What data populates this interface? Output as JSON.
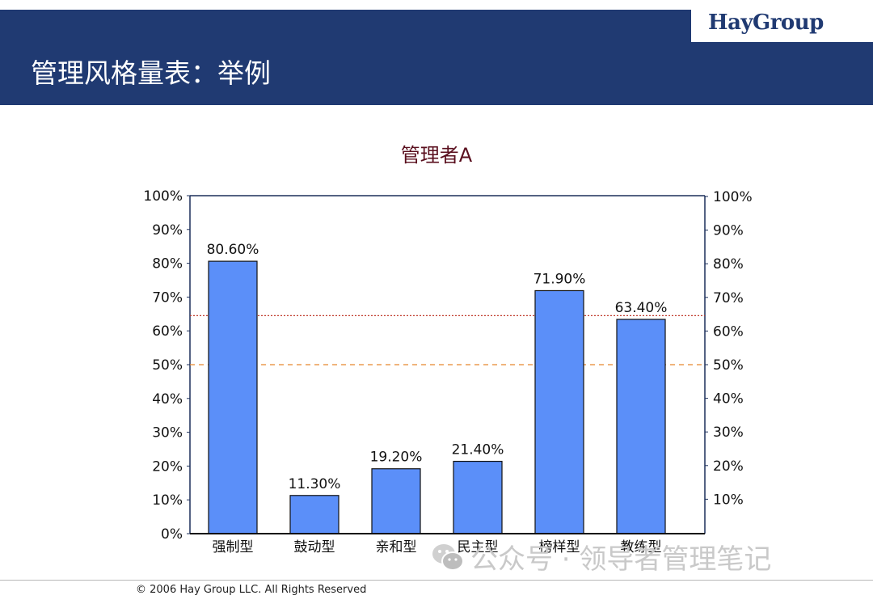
{
  "header": {
    "title": "管理风格量表：举例",
    "logo": "HayGroup"
  },
  "chart_data": {
    "type": "bar",
    "title": "管理者A",
    "categories": [
      "强制型",
      "鼓动型",
      "亲和型",
      "民主型",
      "榜样型",
      "教练型"
    ],
    "values": [
      80.6,
      11.3,
      19.2,
      21.4,
      71.9,
      63.4
    ],
    "data_labels": [
      "80.60%",
      "11.30%",
      "19.20%",
      "21.40%",
      "71.90%",
      "63.40%"
    ],
    "ylim": [
      0,
      100
    ],
    "left_ticks": [
      "0%",
      "10%",
      "20%",
      "30%",
      "40%",
      "50%",
      "60%",
      "70%",
      "80%",
      "90%",
      "100%"
    ],
    "right_ticks": [
      "10%",
      "20%",
      "30%",
      "40%",
      "50%",
      "60%",
      "70%",
      "80%",
      "90%",
      "100%"
    ],
    "reference_lines": [
      {
        "value": 64.5,
        "style": "dotted",
        "color": "#c0392b"
      },
      {
        "value": 50,
        "style": "dashed",
        "color": "#e8862e"
      }
    ],
    "bar_color": "#5b8ff9",
    "xlabel": "",
    "ylabel": ""
  },
  "watermark": {
    "text": "公众号 · 领导者管理笔记"
  },
  "footer": {
    "copyright": "© 2006 Hay Group LLC. All Rights Reserved"
  }
}
